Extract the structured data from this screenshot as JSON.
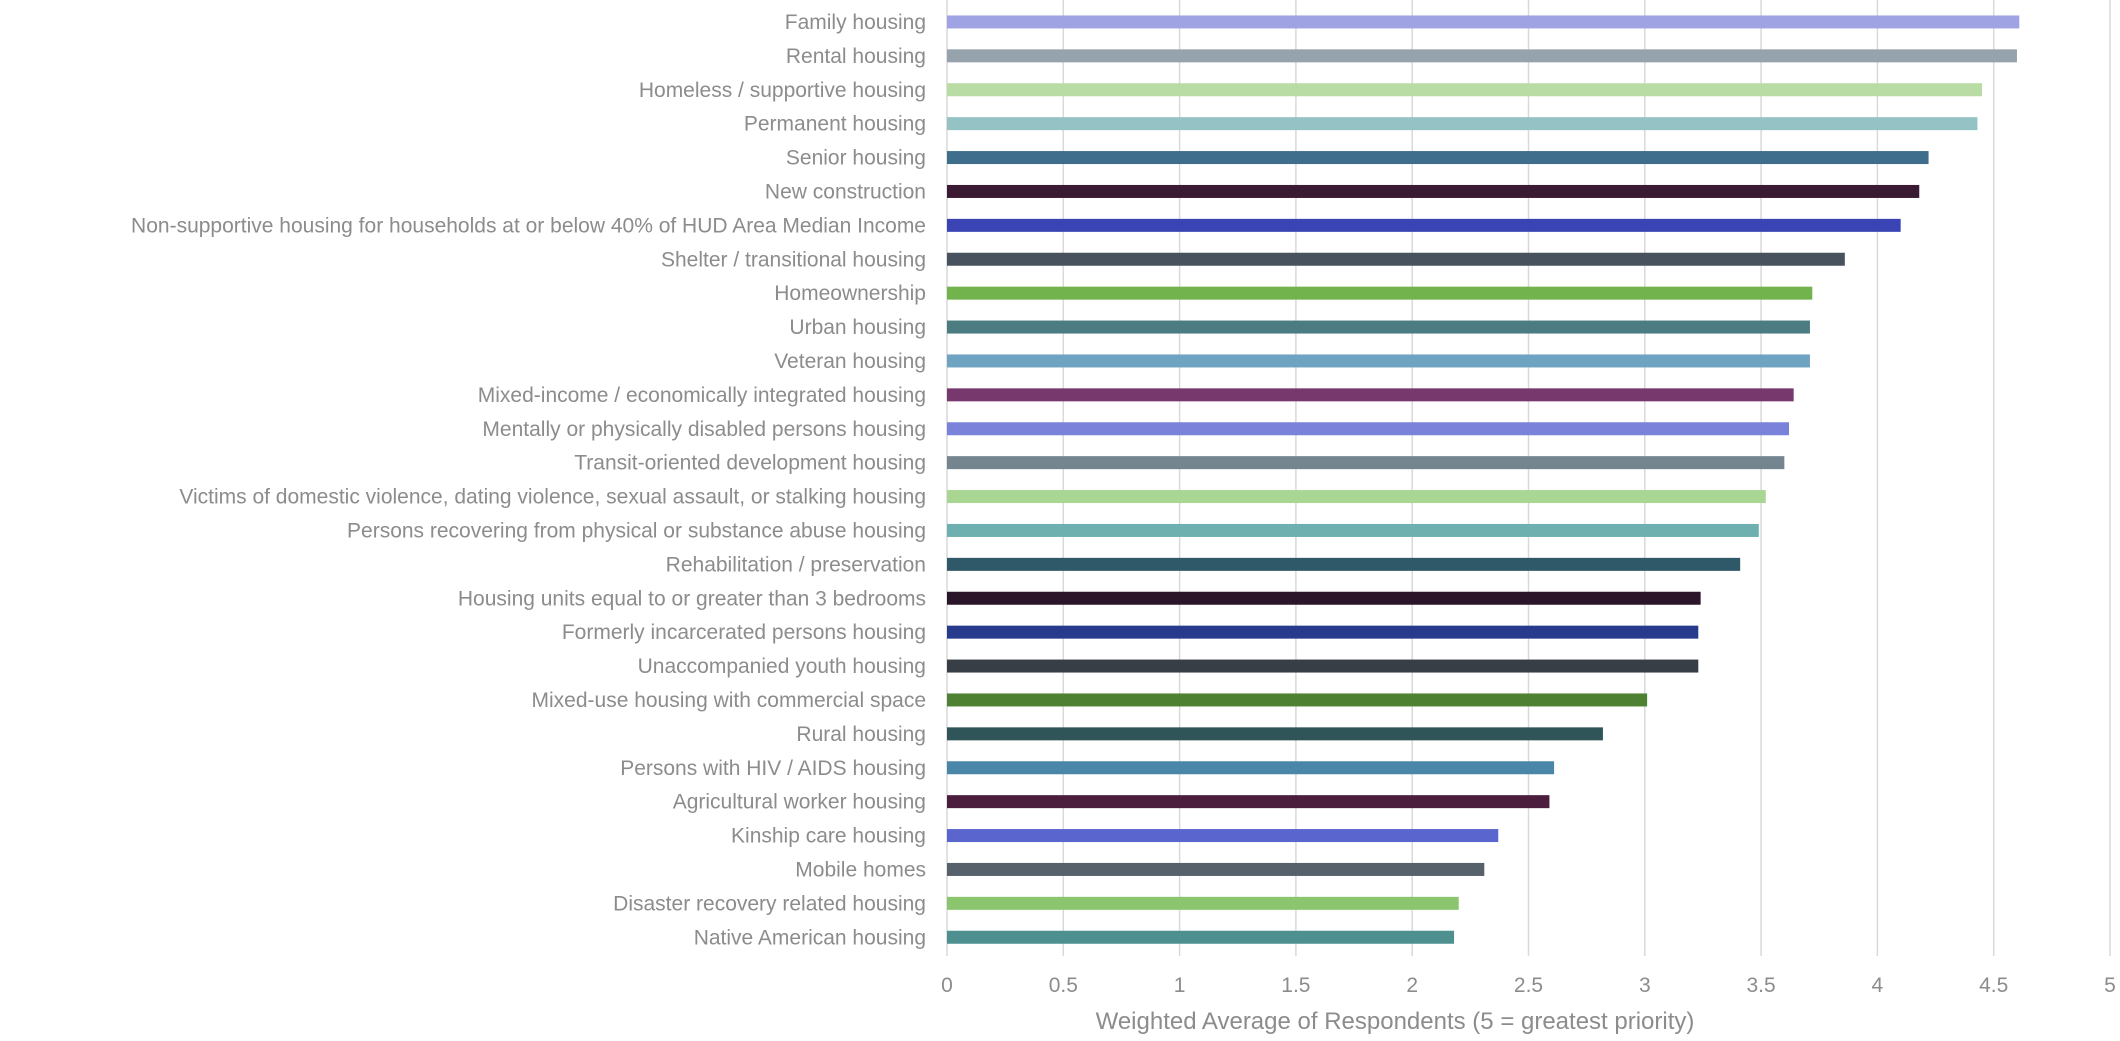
{
  "chart_data": {
    "type": "bar",
    "orientation": "horizontal",
    "title": "",
    "xlabel": "Weighted Average of Respondents (5 = greatest priority)",
    "ylabel": "",
    "xlim": [
      0,
      5
    ],
    "xticks": [
      "0",
      "0.5",
      "1",
      "1.5",
      "2",
      "2.5",
      "3",
      "3.5",
      "4",
      "4.5",
      "5"
    ],
    "grid": "vertical",
    "legend": "none",
    "categories": [
      "Family housing",
      "Rental housing",
      "Homeless / supportive housing",
      "Permanent housing",
      "Senior housing",
      "New construction",
      "Non-supportive housing for households at or below 40% of HUD Area Median Income",
      "Shelter / transitional housing",
      "Homeownership",
      "Urban housing",
      "Veteran housing",
      "Mixed-income / economically integrated housing",
      "Mentally or physically disabled persons housing",
      "Transit-oriented development housing",
      "Victims of domestic violence, dating violence, sexual assault, or stalking housing",
      "Persons recovering from physical or substance abuse housing",
      "Rehabilitation / preservation",
      "Housing units equal to or greater than 3 bedrooms",
      "Formerly incarcerated persons housing",
      "Unaccompanied youth housing",
      "Mixed-use housing with commercial space",
      "Rural housing",
      "Persons with HIV / AIDS housing",
      "Agricultural worker housing",
      "Kinship care housing",
      "Mobile homes",
      "Disaster recovery related housing",
      "Native American housing"
    ],
    "values": [
      4.61,
      4.6,
      4.45,
      4.43,
      4.22,
      4.18,
      4.1,
      3.86,
      3.72,
      3.71,
      3.71,
      3.64,
      3.62,
      3.6,
      3.52,
      3.49,
      3.41,
      3.24,
      3.23,
      3.23,
      3.01,
      2.82,
      2.61,
      2.59,
      2.37,
      2.31,
      2.2,
      2.18
    ],
    "colors": [
      "#a0a3e3",
      "#96a3ad",
      "#b8dca4",
      "#94c2c5",
      "#3f6e8c",
      "#3b1a33",
      "#3a44b4",
      "#48525e",
      "#72b34e",
      "#4a7c82",
      "#6ea4c2",
      "#77386d",
      "#7a82d9",
      "#75858f",
      "#a9d693",
      "#6eafaf",
      "#2f5868",
      "#2a1628",
      "#283a8c",
      "#383e46",
      "#4e8232",
      "#2f5558",
      "#4a86a8",
      "#4a1e3c",
      "#5b65ce",
      "#56616c",
      "#8bc66f",
      "#4e9090"
    ],
    "colors_meta": {
      "grid": "#d9d9d9",
      "axis_text": "#8c8c8c"
    }
  }
}
